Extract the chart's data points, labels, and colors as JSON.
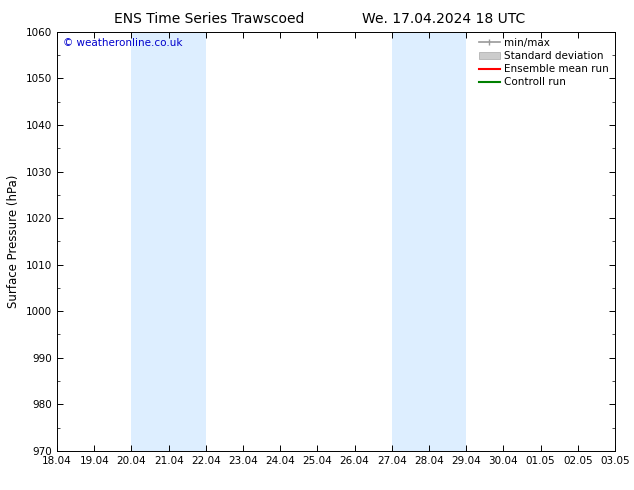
{
  "title_left": "ENS Time Series Trawscoed",
  "title_right": "We. 17.04.2024 18 UTC",
  "ylabel": "Surface Pressure (hPa)",
  "ylim": [
    970,
    1060
  ],
  "yticks": [
    970,
    980,
    990,
    1000,
    1010,
    1020,
    1030,
    1040,
    1050,
    1060
  ],
  "xtick_labels": [
    "18.04",
    "19.04",
    "20.04",
    "21.04",
    "22.04",
    "23.04",
    "24.04",
    "25.04",
    "26.04",
    "27.04",
    "28.04",
    "29.04",
    "30.04",
    "01.05",
    "02.05",
    "03.05"
  ],
  "xtick_positions": [
    0,
    1,
    2,
    3,
    4,
    5,
    6,
    7,
    8,
    9,
    10,
    11,
    12,
    13,
    14,
    15
  ],
  "shaded_regions": [
    {
      "xstart": 2,
      "xend": 4,
      "color": "#ddeeff"
    },
    {
      "xstart": 9,
      "xend": 11,
      "color": "#ddeeff"
    }
  ],
  "copyright_text": "© weatheronline.co.uk",
  "copyright_color": "#0000cc",
  "background_color": "#ffffff",
  "legend_items": [
    {
      "label": "min/max",
      "color": "#999999",
      "lw": 1.2,
      "style": "line_with_caps"
    },
    {
      "label": "Standard deviation",
      "color": "#cccccc",
      "lw": 7,
      "style": "thick"
    },
    {
      "label": "Ensemble mean run",
      "color": "#ff0000",
      "lw": 1.5,
      "style": "line"
    },
    {
      "label": "Controll run",
      "color": "#008000",
      "lw": 1.5,
      "style": "line"
    }
  ],
  "title_fontsize": 10,
  "tick_fontsize": 7.5,
  "ylabel_fontsize": 8.5,
  "legend_fontsize": 7.5,
  "copyright_fontsize": 7.5,
  "figsize": [
    6.34,
    4.9
  ],
  "dpi": 100
}
